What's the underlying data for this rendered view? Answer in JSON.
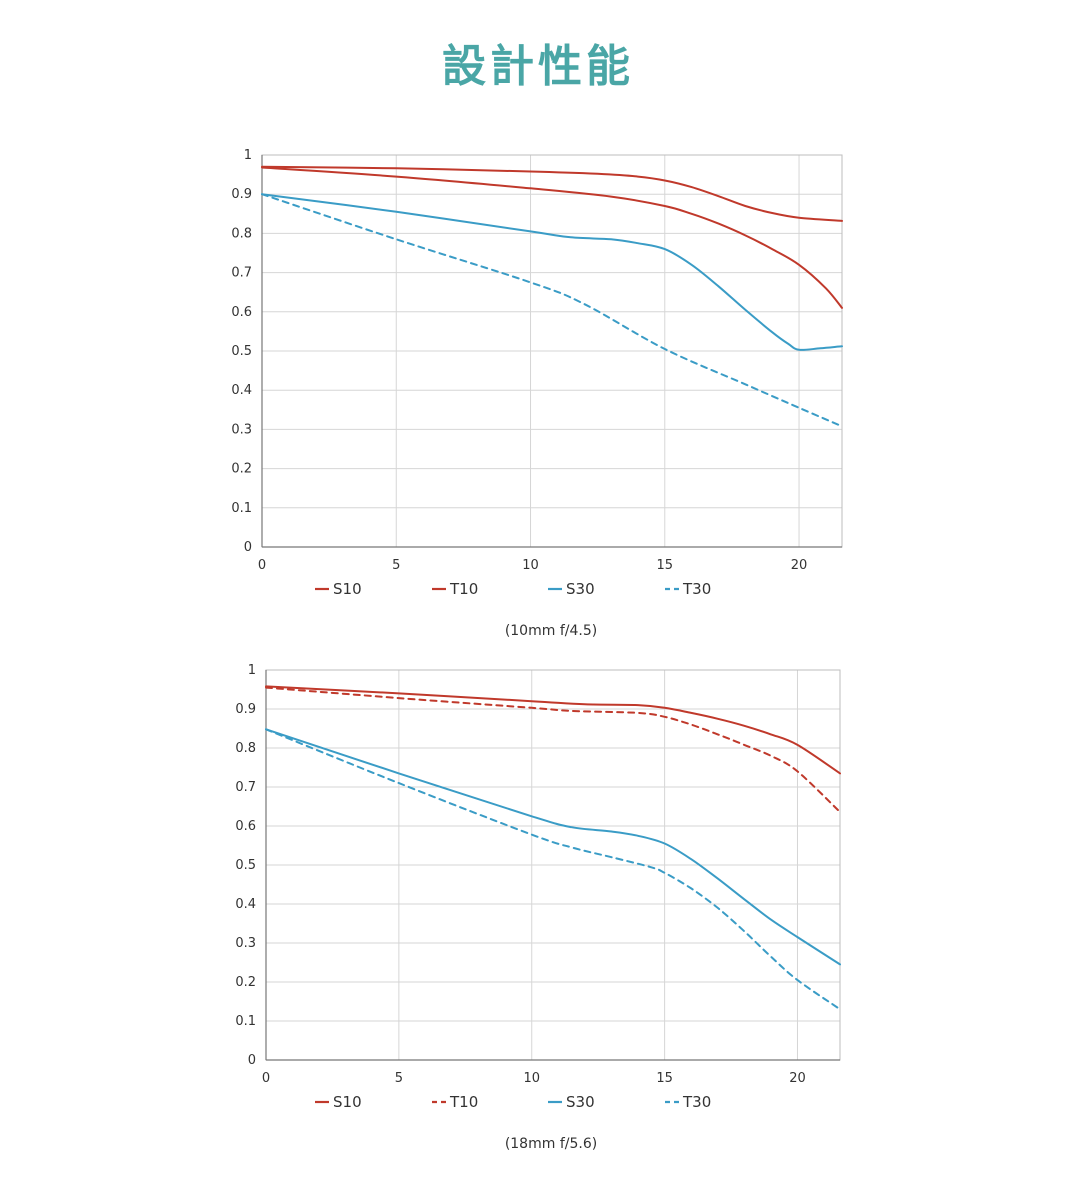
{
  "page": {
    "title": "設計性能"
  },
  "chart_data": [
    {
      "type": "line",
      "caption": "(10mm f/4.5)",
      "xlim": [
        0,
        21.6
      ],
      "ylim": [
        0,
        1
      ],
      "xticks": [
        0,
        5,
        10,
        15,
        20
      ],
      "yticks": [
        0,
        0.1,
        0.2,
        0.3,
        0.4,
        0.5,
        0.6,
        0.7,
        0.8,
        0.9,
        1
      ],
      "grid": true,
      "legend_position": "bottom",
      "colors": {
        "S10": "#c0392b",
        "T10": "#c0392b",
        "S30": "#3a9cc6",
        "T30": "#3a9cc6"
      },
      "series": [
        {
          "name": "S10",
          "dashed": false,
          "x": [
            0,
            5,
            10,
            12.5,
            14,
            15,
            16,
            17,
            18,
            19,
            20,
            21.6
          ],
          "y": [
            0.97,
            0.966,
            0.958,
            0.952,
            0.945,
            0.935,
            0.918,
            0.895,
            0.87,
            0.852,
            0.84,
            0.832
          ]
        },
        {
          "name": "T10",
          "dashed": false,
          "x": [
            0,
            5,
            10,
            13,
            15,
            16,
            17,
            18,
            19,
            20,
            21,
            21.6
          ],
          "y": [
            0.968,
            0.945,
            0.915,
            0.894,
            0.87,
            0.85,
            0.825,
            0.795,
            0.76,
            0.72,
            0.66,
            0.61
          ]
        },
        {
          "name": "S30",
          "dashed": false,
          "x": [
            0,
            5,
            10,
            11.5,
            13,
            14,
            15,
            16,
            17,
            18,
            19,
            19.6,
            20,
            20.8,
            21.6
          ],
          "y": [
            0.9,
            0.855,
            0.805,
            0.79,
            0.785,
            0.775,
            0.76,
            0.72,
            0.665,
            0.605,
            0.548,
            0.518,
            0.503,
            0.507,
            0.512
          ]
        },
        {
          "name": "T30",
          "dashed": true,
          "x": [
            0,
            5,
            10,
            12,
            15,
            18,
            20,
            21.6
          ],
          "y": [
            0.9,
            0.785,
            0.675,
            0.62,
            0.505,
            0.415,
            0.355,
            0.308
          ]
        }
      ]
    },
    {
      "type": "line",
      "caption": "(18mm f/5.6)",
      "xlim": [
        0,
        21.6
      ],
      "ylim": [
        0,
        1
      ],
      "xticks": [
        0,
        5,
        10,
        15,
        20
      ],
      "yticks": [
        0,
        0.1,
        0.2,
        0.3,
        0.4,
        0.5,
        0.6,
        0.7,
        0.8,
        0.9,
        1
      ],
      "grid": true,
      "legend_position": "bottom",
      "colors": {
        "S10": "#c0392b",
        "T10": "#c0392b",
        "S30": "#3a9cc6",
        "T30": "#3a9cc6"
      },
      "series": [
        {
          "name": "S10",
          "dashed": false,
          "x": [
            0,
            5,
            10,
            12,
            14,
            15,
            16,
            17,
            18,
            19,
            20,
            21.6
          ],
          "y": [
            0.958,
            0.94,
            0.92,
            0.912,
            0.91,
            0.903,
            0.89,
            0.875,
            0.857,
            0.835,
            0.808,
            0.735
          ]
        },
        {
          "name": "T10",
          "dashed": true,
          "x": [
            0,
            5,
            10,
            11.5,
            14,
            15,
            16,
            17,
            18,
            19,
            20,
            21.6
          ],
          "y": [
            0.955,
            0.928,
            0.903,
            0.895,
            0.89,
            0.88,
            0.86,
            0.835,
            0.808,
            0.78,
            0.74,
            0.636
          ]
        },
        {
          "name": "S30",
          "dashed": false,
          "x": [
            0,
            5,
            10,
            11.5,
            13,
            14,
            15,
            16,
            17,
            18,
            19,
            20,
            21.6
          ],
          "y": [
            0.848,
            0.735,
            0.625,
            0.597,
            0.586,
            0.575,
            0.555,
            0.515,
            0.465,
            0.412,
            0.36,
            0.315,
            0.245
          ]
        },
        {
          "name": "T30",
          "dashed": true,
          "x": [
            0,
            5,
            10,
            11.5,
            13,
            14.5,
            15,
            16,
            17,
            18,
            19,
            20,
            21.6
          ],
          "y": [
            0.848,
            0.71,
            0.578,
            0.545,
            0.52,
            0.494,
            0.48,
            0.44,
            0.39,
            0.33,
            0.265,
            0.205,
            0.13
          ]
        }
      ]
    }
  ]
}
